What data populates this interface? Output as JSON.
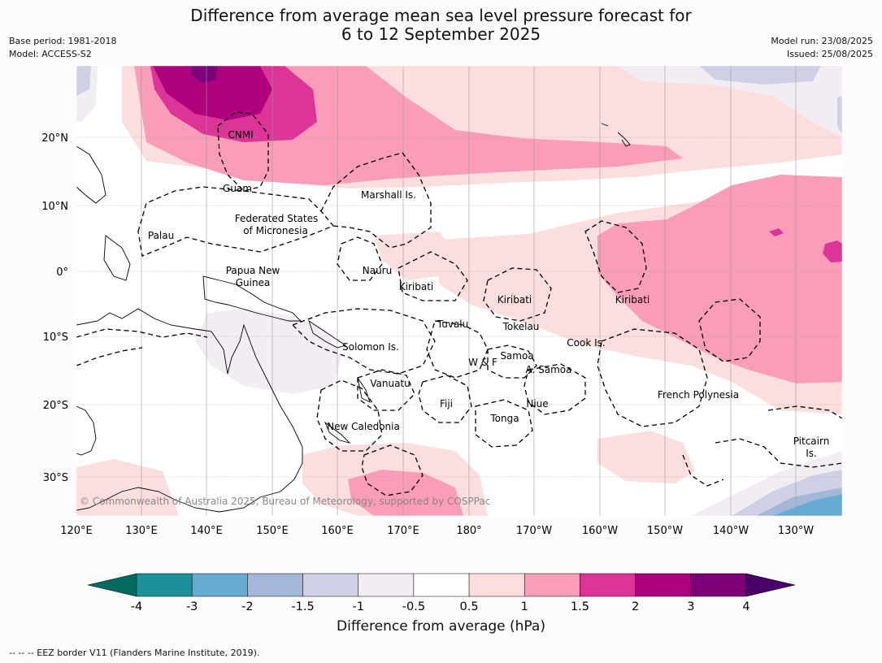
{
  "title": {
    "line1": "Difference from average mean sea level pressure forecast for",
    "line2": "6 to 12 September 2025"
  },
  "meta": {
    "base_period": "Base period: 1981-2018",
    "model": "Model: ACCESS-S2",
    "model_run": "Model run: 23/08/2025",
    "issued": "Issued: 25/08/2025"
  },
  "map": {
    "lat_labels": [
      "20°N",
      "10°N",
      "0°",
      "10°S",
      "20°S",
      "30°S"
    ],
    "lon_labels": [
      "120°E",
      "130°E",
      "140°E",
      "150°E",
      "160°E",
      "170°E",
      "180°",
      "170°W",
      "160°W",
      "150°W",
      "140°W",
      "130°W"
    ],
    "copyright": "© Commonwealth of Australia 2025, Bureau of Meteorology, supported by COSPPac",
    "places": {
      "cnmi": "CNMI",
      "guam": "Guam",
      "marshall": "Marshall Is.",
      "fsm1": "Federated States",
      "fsm2": "of Micronesia",
      "palau": "Palau",
      "png1": "Papua New",
      "png2": "Guinea",
      "nauru": "Nauru",
      "kiribati_w": "Kiribati",
      "kiribati_c": "Kiribati",
      "kiribati_e": "Kiribati",
      "tuvalu": "Tuvalu",
      "tokelau": "Tokelau",
      "cook": "Cook Is.",
      "solomon": "Solomon Is.",
      "samoa": "Samoa",
      "wf": "W & F",
      "asamoa": "A. Samoa",
      "vanuatu": "Vanuatu",
      "fiji": "Fiji",
      "niue": "Niue",
      "tonga": "Tonga",
      "frpoly": "French Polynesia",
      "newcal": "New Caledonia",
      "pitcairn1": "Pitcairn",
      "pitcairn2": "Is."
    }
  },
  "colorbar": {
    "ticks": [
      "-4",
      "-3",
      "-2",
      "-1.5",
      "-1",
      "-0.5",
      "0.5",
      "1",
      "1.5",
      "2",
      "3",
      "4"
    ],
    "colors": [
      "#006b5e",
      "#1b9199",
      "#66abd2",
      "#a5b7d8",
      "#cfd0e6",
      "#f2ecf3",
      "#ffffff",
      "#fcdede",
      "#f99db8",
      "#dd3497",
      "#ae017e",
      "#7a0177",
      "#49006a"
    ],
    "label": "Difference from average (hPa)"
  },
  "footnote": "--  --  -- EEZ border V11 (Flanders Marine Institute, 2019)."
}
